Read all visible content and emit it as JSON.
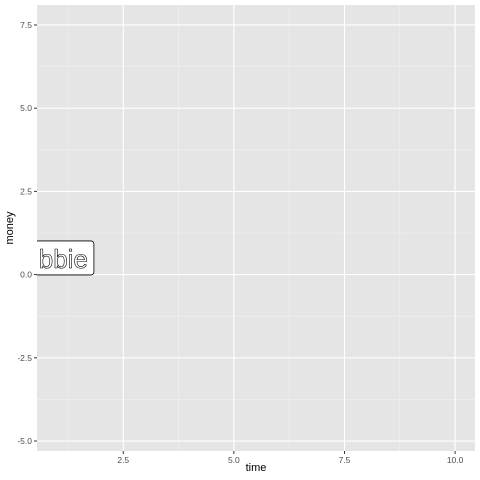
{
  "chart_data": {
    "type": "scatter",
    "title": "",
    "xlabel": "time",
    "ylabel": "money",
    "xlim": [
      0.55,
      10.45
    ],
    "ylim": [
      -5.3,
      8.1
    ],
    "xticks": [
      2.5,
      5.0,
      7.5,
      10.0
    ],
    "xtick_labels": [
      "2.5",
      "5.0",
      "7.5",
      "10.0"
    ],
    "yticks": [
      -5.0,
      -2.5,
      0.0,
      2.5,
      5.0,
      7.5
    ],
    "ytick_labels": [
      "-5.0",
      "-2.5",
      "0.0",
      "2.5",
      "5.0",
      "7.5"
    ],
    "grid": true,
    "legend": "none",
    "colors": {
      "panel": "#e5e5e5",
      "grid_major": "#ffffff",
      "grid_minor": "#f2f2f2",
      "label_fill": "#ffffff",
      "label_border": "#000000"
    },
    "points": [
      {
        "x": 1.0,
        "y": 0.5,
        "label": "bbie"
      }
    ]
  }
}
